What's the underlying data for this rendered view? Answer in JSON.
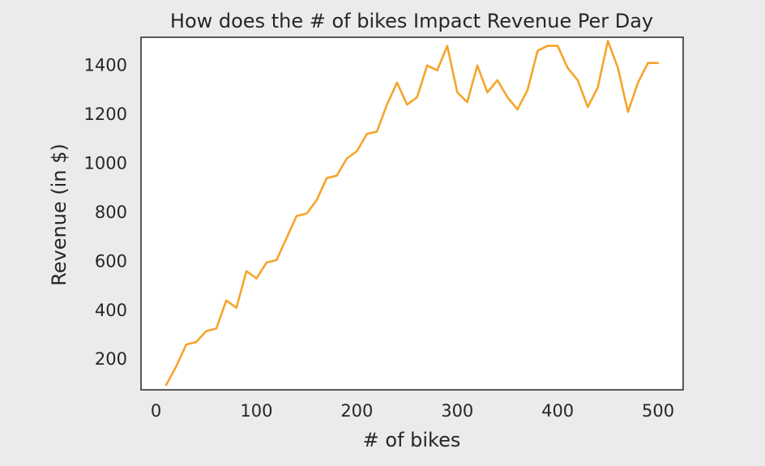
{
  "chart_data": {
    "type": "line",
    "title": "How does the # of bikes Impact Revenue Per Day",
    "xlabel": "# of bikes",
    "ylabel": "Revenue (in $)",
    "xlim": [
      -15,
      525
    ],
    "ylim": [
      75,
      1515
    ],
    "x_ticks": [
      0,
      100,
      200,
      300,
      400,
      500
    ],
    "y_ticks": [
      200,
      400,
      600,
      800,
      1000,
      1200,
      1400
    ],
    "grid": false,
    "legend": "none",
    "line_color": "#f6a42a",
    "series": [
      {
        "x": [
          10,
          20,
          30,
          40,
          50,
          60,
          70,
          80,
          90,
          100,
          110,
          120,
          130,
          140,
          150,
          160,
          170,
          180,
          190,
          200,
          210,
          220,
          230,
          240,
          250,
          260,
          270,
          280,
          290,
          300,
          310,
          320,
          330,
          340,
          350,
          360,
          370,
          380,
          390,
          400,
          410,
          420,
          430,
          440,
          450,
          460,
          470,
          480,
          490,
          500
        ],
        "y": [
          95,
          170,
          260,
          270,
          315,
          325,
          440,
          410,
          560,
          530,
          595,
          605,
          695,
          785,
          795,
          850,
          940,
          950,
          1020,
          1050,
          1120,
          1130,
          1240,
          1330,
          1240,
          1270,
          1400,
          1380,
          1480,
          1290,
          1250,
          1400,
          1290,
          1340,
          1270,
          1220,
          1300,
          1460,
          1480,
          1480,
          1390,
          1340,
          1230,
          1310,
          1500,
          1390,
          1210,
          1330,
          1410,
          1410
        ]
      }
    ]
  }
}
